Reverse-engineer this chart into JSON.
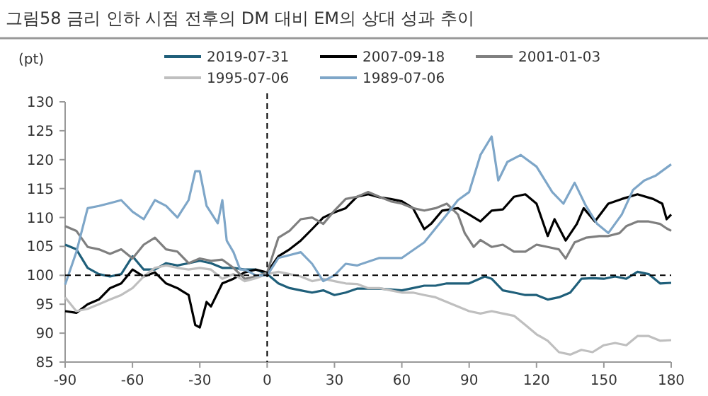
{
  "chart_data": {
    "type": "line",
    "title": "그림58 금리 인하 시점 전후의 DM 대비 EM의 상대 성과 추이",
    "ylabel": "(pt)",
    "legend": "top",
    "grid": false,
    "xlim": [
      -90,
      180
    ],
    "ylim": [
      85,
      130
    ],
    "xticks": [
      -90,
      -60,
      -30,
      0,
      30,
      60,
      90,
      120,
      150,
      180
    ],
    "yticks": [
      85,
      90,
      95,
      100,
      105,
      110,
      115,
      120,
      125,
      130
    ],
    "ref_lines": [
      {
        "axis": "y",
        "value": 100,
        "label": null,
        "color": "#000000",
        "line_style": "dashed"
      },
      {
        "axis": "x",
        "value": 0,
        "label": null,
        "color": "#000000",
        "line_style": "dashed"
      }
    ],
    "series": [
      {
        "name": "2019-07-31",
        "color": "#1f5f7a",
        "x": [
          -90,
          -85,
          -80,
          -75,
          -70,
          -65,
          -60,
          -55,
          -50,
          -45,
          -40,
          -35,
          -30,
          -25,
          -20,
          -15,
          -10,
          -5,
          0,
          5,
          10,
          15,
          20,
          25,
          30,
          35,
          40,
          50,
          60,
          65,
          70,
          75,
          80,
          90,
          97,
          100,
          105,
          110,
          115,
          120,
          125,
          130,
          135,
          140,
          145,
          150,
          155,
          160,
          165,
          170,
          175,
          180
        ],
        "values": [
          105.3,
          104.5,
          101.3,
          100.2,
          99.8,
          100.2,
          103.3,
          101,
          101,
          102.1,
          101.7,
          102.1,
          102.5,
          102.1,
          101.3,
          101.3,
          101,
          101,
          100.2,
          98.6,
          97.8,
          97.4,
          97,
          97.4,
          96.6,
          97,
          97.7,
          97.7,
          97.4,
          97.8,
          98.2,
          98.2,
          98.6,
          98.6,
          99.8,
          99.4,
          97.4,
          97,
          96.6,
          96.6,
          95.8,
          96.2,
          97,
          99.4,
          99.5,
          99.4,
          99.8,
          99.4,
          100.6,
          100.2,
          98.6,
          98.7
        ]
      },
      {
        "name": "2007-09-18",
        "color": "#000000",
        "x": [
          -90,
          -85,
          -80,
          -75,
          -70,
          -65,
          -60,
          -55,
          -50,
          -45,
          -40,
          -35,
          -32,
          -30,
          -27,
          -25,
          -22,
          -20,
          -15,
          -10,
          -5,
          0,
          5,
          10,
          15,
          20,
          25,
          30,
          35,
          40,
          45,
          50,
          55,
          60,
          65,
          70,
          73,
          78,
          85,
          90,
          95,
          100,
          105,
          110,
          115,
          120,
          125,
          128,
          133,
          138,
          141,
          146,
          152,
          158,
          165,
          172,
          176,
          178,
          180
        ],
        "values": [
          93.8,
          93.5,
          95,
          95.8,
          97.8,
          98.6,
          101,
          99.8,
          100.5,
          98.6,
          97.8,
          96.6,
          91.4,
          91,
          95.4,
          94.6,
          97,
          98.6,
          99.4,
          100.5,
          101,
          100.5,
          103.3,
          104.5,
          106,
          108,
          110,
          110.9,
          111.6,
          113.6,
          114,
          113.5,
          113.2,
          112.8,
          111.6,
          108,
          108.9,
          111.2,
          111.6,
          110.5,
          109.3,
          111.2,
          111.4,
          113.6,
          114,
          112.4,
          106.8,
          109.7,
          106,
          108.9,
          111.6,
          109.3,
          112.4,
          113.2,
          114,
          113.2,
          112.4,
          109.7,
          110.5
        ]
      },
      {
        "name": "2001-01-03",
        "color": "#7f7f7f",
        "x": [
          -90,
          -85,
          -80,
          -75,
          -70,
          -65,
          -60,
          -55,
          -50,
          -45,
          -40,
          -35,
          -30,
          -25,
          -20,
          -15,
          -10,
          -5,
          0,
          5,
          10,
          15,
          20,
          25,
          30,
          35,
          40,
          45,
          50,
          55,
          60,
          65,
          70,
          75,
          80,
          85,
          88,
          92,
          95,
          100,
          105,
          110,
          115,
          120,
          125,
          130,
          133,
          137,
          142,
          148,
          152,
          157,
          160,
          165,
          170,
          175,
          178,
          180
        ],
        "values": [
          108.5,
          107.7,
          104.9,
          104.5,
          103.7,
          104.5,
          102.9,
          105.3,
          106.5,
          104.5,
          104.1,
          102.1,
          102.9,
          102.5,
          102.7,
          101.3,
          99.4,
          99.8,
          100.5,
          106.5,
          107.7,
          109.7,
          110,
          108.9,
          111.2,
          113.2,
          113.6,
          114.4,
          113.6,
          112.8,
          112.4,
          111.6,
          111.2,
          111.6,
          112.4,
          110.5,
          107.3,
          104.9,
          106.1,
          104.9,
          105.3,
          104.1,
          104.1,
          105.3,
          104.9,
          104.5,
          102.9,
          105.7,
          106.5,
          106.8,
          106.8,
          107.3,
          108.5,
          109.3,
          109.3,
          108.9,
          108.1,
          107.7
        ]
      },
      {
        "name": "1995-07-06",
        "color": "#bfbfbf",
        "x": [
          -90,
          -85,
          -80,
          -75,
          -70,
          -65,
          -60,
          -55,
          -50,
          -45,
          -40,
          -35,
          -30,
          -25,
          -20,
          -15,
          -10,
          -5,
          0,
          5,
          10,
          15,
          20,
          25,
          30,
          35,
          40,
          45,
          50,
          55,
          60,
          65,
          70,
          75,
          80,
          85,
          90,
          95,
          100,
          105,
          110,
          115,
          120,
          125,
          130,
          135,
          140,
          145,
          150,
          155,
          160,
          165,
          170,
          175,
          180
        ],
        "values": [
          96.2,
          93.8,
          94.2,
          95,
          95.8,
          96.6,
          97.8,
          99.8,
          101.3,
          101.7,
          101.3,
          101,
          101.3,
          101,
          99.4,
          100.2,
          99,
          99.5,
          100.2,
          100.6,
          100.2,
          99.8,
          99,
          99.4,
          99,
          98.6,
          98.5,
          97.8,
          97.8,
          97.4,
          97,
          97,
          96.6,
          96.2,
          95.4,
          94.6,
          93.8,
          93.4,
          93.8,
          93.4,
          93,
          91.4,
          89.8,
          88.7,
          86.7,
          86.3,
          87.1,
          86.7,
          87.9,
          88.3,
          87.9,
          89.5,
          89.5,
          88.7,
          88.8
        ]
      },
      {
        "name": "1989-07-06",
        "color": "#7ea6c8",
        "x": [
          -90,
          -85,
          -80,
          -75,
          -70,
          -65,
          -60,
          -55,
          -50,
          -45,
          -40,
          -35,
          -32,
          -30,
          -27,
          -22,
          -20,
          -18,
          -15,
          -12,
          -10,
          -5,
          0,
          5,
          10,
          15,
          20,
          25,
          30,
          35,
          40,
          50,
          60,
          70,
          80,
          85,
          90,
          95,
          100,
          103,
          107,
          113,
          120,
          127,
          132,
          137,
          142,
          147,
          152,
          158,
          163,
          168,
          173,
          180
        ],
        "values": [
          98.4,
          104,
          111.6,
          112,
          112.5,
          113,
          111,
          109.7,
          113,
          112,
          110,
          113,
          118,
          118,
          112,
          109,
          113,
          106,
          104,
          101,
          101,
          100,
          100,
          103,
          103.5,
          104,
          102,
          99,
          100,
          102,
          101.7,
          103,
          103,
          105.7,
          110.5,
          113,
          114.4,
          120.8,
          124,
          116.4,
          119.6,
          120.8,
          118.8,
          114.4,
          112.4,
          116,
          112,
          108.9,
          107.3,
          110.5,
          114.8,
          116.4,
          117.2,
          119.2
        ]
      }
    ]
  }
}
